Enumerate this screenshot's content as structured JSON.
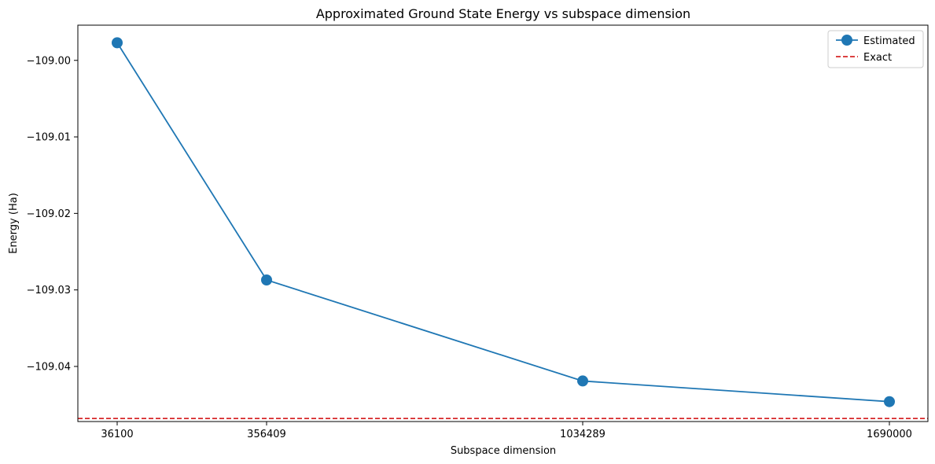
{
  "chart_data": {
    "type": "line",
    "title": "Approximated Ground State Energy vs subspace dimension",
    "xlabel": "Subspace dimension",
    "ylabel": "Energy (Ha)",
    "x_scale": "categorical",
    "categories": [
      "36100",
      "356409",
      "1034289",
      "1690000"
    ],
    "series": [
      {
        "name": "Estimated",
        "color": "#1f77b4",
        "marker": "circle",
        "values": [
          -108.9977,
          -109.0287,
          -109.0419,
          -109.0446
        ]
      }
    ],
    "reference_lines": [
      {
        "name": "Exact",
        "value": -109.0468,
        "color": "#d62728",
        "style": "dashed"
      }
    ],
    "ylim": [
      -109.0472,
      -108.9954
    ],
    "yticks": [
      -109.04,
      -109.03,
      -109.02,
      -109.01,
      -109.0
    ],
    "ytick_labels": [
      "−109.04",
      "−109.03",
      "−109.02",
      "−109.01",
      "−109.00"
    ],
    "legend": {
      "position": "top-right",
      "entries": [
        "Estimated",
        "Exact"
      ]
    },
    "grid": false
  }
}
